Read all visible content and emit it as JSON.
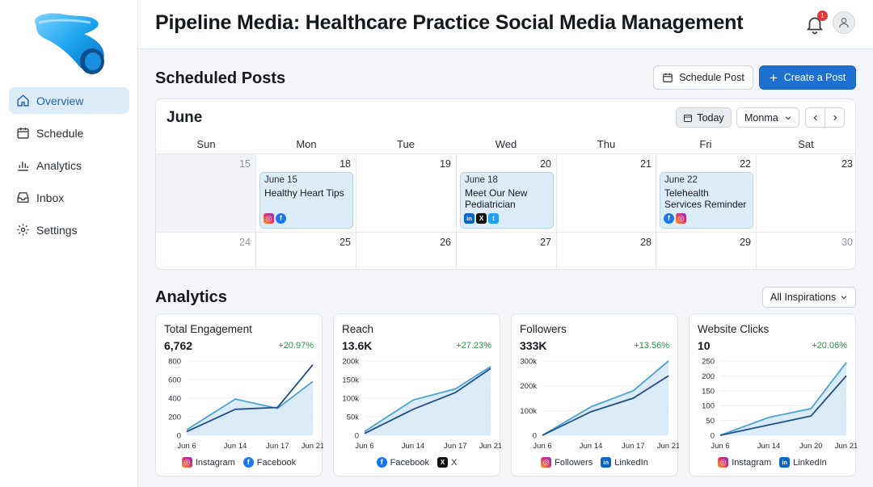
{
  "header": {
    "title": "Pipeline Media: Healthcare Practice Social Media Management",
    "notification_count": "1"
  },
  "sidebar": {
    "items": [
      {
        "label": "Overview",
        "icon": "home-icon"
      },
      {
        "label": "Schedule",
        "icon": "calendar-icon"
      },
      {
        "label": "Analytics",
        "icon": "bar-chart-icon"
      },
      {
        "label": "Inbox",
        "icon": "inbox-icon"
      },
      {
        "label": "Settings",
        "icon": "gear-icon"
      }
    ]
  },
  "scheduled": {
    "title": "Scheduled Posts",
    "schedule_btn": "Schedule Post",
    "create_btn": "Create a Post",
    "calendar": {
      "month": "June",
      "today_btn": "Today",
      "view_select": "Monma",
      "days_of_week": [
        "Sun",
        "Mon",
        "Tue",
        "Wed",
        "Thu",
        "Fri",
        "Sat"
      ],
      "week1": [
        "15",
        "18",
        "19",
        "20",
        "21",
        "22",
        "23"
      ],
      "week2": [
        "24",
        "25",
        "26",
        "27",
        "28",
        "29",
        "30"
      ],
      "events": [
        {
          "date": "June 15",
          "title": "Healthy Heart Tips",
          "networks": [
            "instagram",
            "facebook"
          ]
        },
        {
          "date": "June 18",
          "title": "Meet Our New Pediatrician",
          "networks": [
            "linkedin",
            "x",
            "twitter"
          ]
        },
        {
          "date": "June 22",
          "title": "Telehealth Services Reminder",
          "networks": [
            "facebook",
            "instagram"
          ]
        }
      ]
    }
  },
  "analytics": {
    "title": "Analytics",
    "filter": "All Inspirations",
    "colors": {
      "series_a": "#4aa3d8",
      "series_b": "#1f4e8c",
      "positive": "#2b9348"
    }
  },
  "chart_data": [
    {
      "type": "line",
      "title": "Total Engagement",
      "value": "6,762",
      "change": "+20.97%",
      "categories": [
        "Jun 6",
        "Jun 14",
        "Jun 17",
        "Jun 21"
      ],
      "yticks": [
        "800",
        "600",
        "400",
        "200",
        "0"
      ],
      "ylim": [
        0,
        800
      ],
      "series": [
        {
          "name": "Instagram",
          "values": [
            60,
            390,
            290,
            580
          ]
        },
        {
          "name": "Facebook",
          "values": [
            40,
            280,
            300,
            760
          ]
        }
      ]
    },
    {
      "type": "line",
      "title": "Reach",
      "value": "13.6K",
      "change": "+27.23%",
      "categories": [
        "Jun 6",
        "Jun 14",
        "Jun 17",
        "Jun 21"
      ],
      "yticks": [
        "200k",
        "150k",
        "100k",
        "50k",
        "0"
      ],
      "ylim": [
        0,
        200000
      ],
      "series": [
        {
          "name": "Facebook",
          "values": [
            10000,
            95000,
            125000,
            185000
          ]
        },
        {
          "name": "X",
          "values": [
            5000,
            70000,
            115000,
            180000
          ]
        }
      ]
    },
    {
      "type": "line",
      "title": "Followers",
      "value": "333K",
      "change": "+13.56%",
      "categories": [
        "Jun 6",
        "Jun 14",
        "Jun 17",
        "Jun 21"
      ],
      "yticks": [
        "300k",
        "200k",
        "100k",
        "0"
      ],
      "ylim": [
        0,
        300000
      ],
      "series": [
        {
          "name": "Followers",
          "values": [
            0,
            115000,
            180000,
            300000
          ]
        },
        {
          "name": "LinkedIn",
          "values": [
            0,
            95000,
            150000,
            240000
          ]
        }
      ]
    },
    {
      "type": "line",
      "title": "Website Clicks",
      "value": "10",
      "change": "+20.06%",
      "categories": [
        "Jun 6",
        "Jun 14",
        "Jun 20",
        "Jun 21"
      ],
      "yticks": [
        "250",
        "200",
        "150",
        "100",
        "50",
        "0"
      ],
      "ylim": [
        0,
        250
      ],
      "series": [
        {
          "name": "Instagram",
          "values": [
            0,
            60,
            90,
            245
          ]
        },
        {
          "name": "LinkedIn",
          "values": [
            0,
            35,
            65,
            200
          ]
        }
      ]
    }
  ]
}
